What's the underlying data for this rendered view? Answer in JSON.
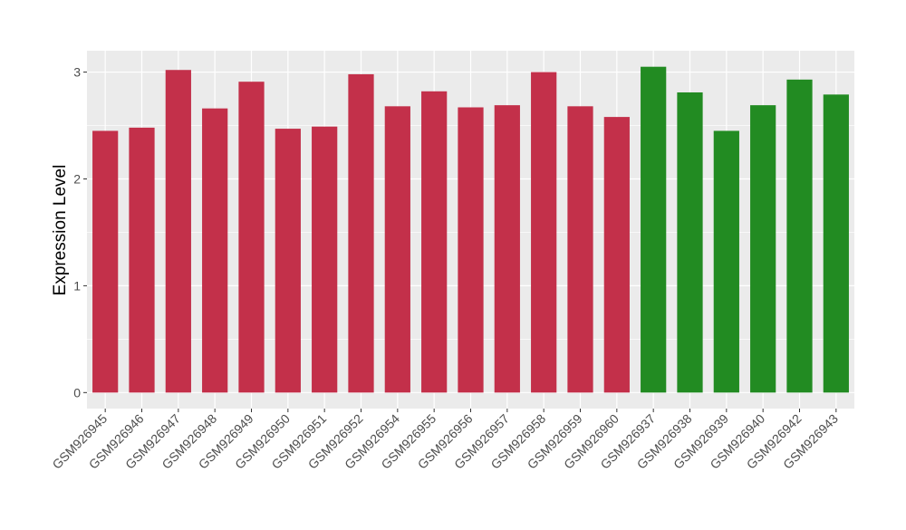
{
  "chart_data": {
    "type": "bar",
    "title": "",
    "xlabel": "",
    "ylabel": "Expression Level",
    "ylim": [
      -0.15,
      3.2
    ],
    "yticks": [
      0,
      1,
      2,
      3
    ],
    "grid": true,
    "legend": "none",
    "categories": [
      "GSM926945",
      "GSM926946",
      "GSM926947",
      "GSM926948",
      "GSM926949",
      "GSM926950",
      "GSM926951",
      "GSM926952",
      "GSM926954",
      "GSM926955",
      "GSM926956",
      "GSM926957",
      "GSM926958",
      "GSM926959",
      "GSM926960",
      "GSM926937",
      "GSM926938",
      "GSM926939",
      "GSM926940",
      "GSM926942",
      "GSM926943"
    ],
    "values": [
      2.45,
      2.48,
      3.02,
      2.66,
      2.91,
      2.47,
      2.49,
      2.98,
      2.68,
      2.82,
      2.67,
      2.69,
      3.0,
      2.68,
      2.58,
      3.05,
      2.81,
      2.45,
      2.69,
      2.93,
      2.79
    ],
    "bar_colors": [
      "#C3304A",
      "#C3304A",
      "#C3304A",
      "#C3304A",
      "#C3304A",
      "#C3304A",
      "#C3304A",
      "#C3304A",
      "#C3304A",
      "#C3304A",
      "#C3304A",
      "#C3304A",
      "#C3304A",
      "#C3304A",
      "#C3304A",
      "#228B22",
      "#228B22",
      "#228B22",
      "#228B22",
      "#228B22",
      "#228B22"
    ],
    "panel_background": "#EBEBEB",
    "grid_color": "#FFFFFF"
  }
}
